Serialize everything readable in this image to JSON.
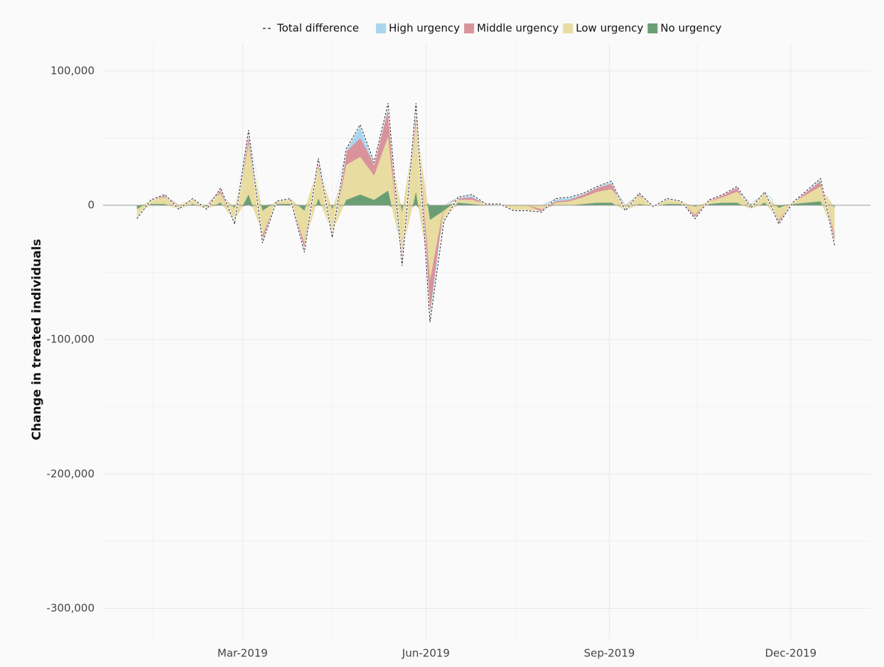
{
  "chart_data": {
    "type": "stacked_area",
    "ylabel": "Change in treated individuals",
    "x": [
      "2019-01-07",
      "2019-01-14",
      "2019-01-21",
      "2019-01-28",
      "2019-02-04",
      "2019-02-11",
      "2019-02-18",
      "2019-02-25",
      "2019-03-04",
      "2019-03-11",
      "2019-03-18",
      "2019-03-25",
      "2019-04-01",
      "2019-04-08",
      "2019-04-15",
      "2019-04-22",
      "2019-04-29",
      "2019-05-06",
      "2019-05-13",
      "2019-05-20",
      "2019-05-27",
      "2019-06-03",
      "2019-06-10",
      "2019-06-17",
      "2019-06-24",
      "2019-07-01",
      "2019-07-08",
      "2019-07-15",
      "2019-07-22",
      "2019-07-29",
      "2019-08-05",
      "2019-08-12",
      "2019-08-19",
      "2019-08-26",
      "2019-09-02",
      "2019-09-09",
      "2019-09-16",
      "2019-09-23",
      "2019-09-30",
      "2019-10-07",
      "2019-10-14",
      "2019-10-21",
      "2019-10-28",
      "2019-11-04",
      "2019-11-11",
      "2019-11-18",
      "2019-11-25",
      "2019-12-02",
      "2019-12-09",
      "2019-12-16",
      "2019-12-23"
    ],
    "total": {
      "name": "Total difference",
      "color": "#222222",
      "values": [
        -10000,
        4000,
        8000,
        -3000,
        5000,
        -3000,
        13000,
        -14000,
        56000,
        -28000,
        3000,
        5000,
        -35000,
        35000,
        -24000,
        42000,
        60000,
        32000,
        76000,
        -45000,
        76000,
        -87000,
        -12000,
        6000,
        8000,
        1000,
        1000,
        -4000,
        -4000,
        -5000,
        5000,
        6000,
        9000,
        14000,
        18000,
        -4000,
        9000,
        -1000,
        5000,
        3000,
        -10000,
        4000,
        8000,
        14000,
        -2000,
        10000,
        -14000,
        2000,
        11000,
        20000,
        -30000
      ]
    },
    "series": [
      {
        "name": "High urgency",
        "color": "#a9d6ee",
        "values": [
          -1000,
          0,
          0,
          0,
          0,
          0,
          0,
          0,
          2000,
          0,
          0,
          0,
          -1000,
          1000,
          0,
          2000,
          10000,
          1000,
          5000,
          -1000,
          2000,
          -7000,
          0,
          1000,
          2000,
          0,
          0,
          0,
          0,
          0,
          2000,
          2000,
          1000,
          1000,
          2000,
          0,
          1000,
          0,
          1000,
          0,
          0,
          0,
          0,
          1000,
          0,
          1000,
          0,
          0,
          1000,
          2000,
          -1000
        ]
      },
      {
        "name": "Middle urgency",
        "color": "#d9939c",
        "values": [
          0,
          0,
          2000,
          0,
          0,
          0,
          4000,
          -2000,
          8000,
          -6000,
          0,
          0,
          -6000,
          5000,
          -4000,
          10000,
          14000,
          9000,
          20000,
          -9000,
          12000,
          -24000,
          0,
          1000,
          2000,
          0,
          0,
          0,
          0,
          -2000,
          1000,
          1000,
          2000,
          3000,
          4000,
          0,
          1000,
          0,
          0,
          0,
          -3000,
          1000,
          2000,
          3000,
          0,
          1000,
          -3000,
          0,
          2000,
          4000,
          -7000
        ]
      },
      {
        "name": "Low urgency",
        "color": "#e8dca0",
        "values": [
          -6000,
          3000,
          5000,
          -3000,
          4000,
          -2000,
          7000,
          -10000,
          38000,
          -18000,
          2000,
          4000,
          -24000,
          24000,
          -17000,
          26000,
          28000,
          18000,
          40000,
          -30000,
          52000,
          -45000,
          -8000,
          2000,
          3000,
          1000,
          1000,
          -4000,
          -4000,
          -3000,
          2000,
          3000,
          5000,
          8000,
          10000,
          -4000,
          6000,
          -1000,
          3000,
          2000,
          -6000,
          2000,
          4000,
          8000,
          -3000,
          6000,
          -9000,
          1000,
          6000,
          11000,
          -20000
        ]
      },
      {
        "name": "No urgency",
        "color": "#6a9f74",
        "values": [
          -3000,
          1000,
          1000,
          0,
          1000,
          -1000,
          2000,
          -2000,
          8000,
          -4000,
          1000,
          1000,
          -4000,
          5000,
          -3000,
          4000,
          8000,
          4000,
          11000,
          -5000,
          10000,
          -11000,
          -4000,
          2000,
          1000,
          0,
          0,
          0,
          0,
          0,
          0,
          0,
          1000,
          2000,
          2000,
          0,
          1000,
          0,
          1000,
          1000,
          -1000,
          1000,
          2000,
          2000,
          1000,
          2000,
          -2000,
          1000,
          2000,
          3000,
          -2000
        ]
      }
    ],
    "xlim": [
      "2018-12-21",
      "2020-01-10"
    ],
    "xticks": [
      {
        "value": "2019-03-01",
        "label": "Mar-2019"
      },
      {
        "value": "2019-06-01",
        "label": "Jun-2019"
      },
      {
        "value": "2019-09-01",
        "label": "Sep-2019"
      },
      {
        "value": "2019-12-01",
        "label": "Dec-2019"
      }
    ],
    "xminor_ticks": [
      "2019-01-15",
      "2019-04-15",
      "2019-07-16",
      "2019-10-15"
    ],
    "ylim": [
      -323000,
      120000
    ],
    "yticks": [
      {
        "value": -300000,
        "label": "-300,000"
      },
      {
        "value": -200000,
        "label": "-200,000"
      },
      {
        "value": -100000,
        "label": "-100,000"
      },
      0,
      {
        "value": 100000,
        "label": "100,000"
      }
    ],
    "yminor_ticks": [
      -250000,
      -150000,
      -50000,
      50000
    ],
    "grid": true,
    "legend": "top"
  }
}
